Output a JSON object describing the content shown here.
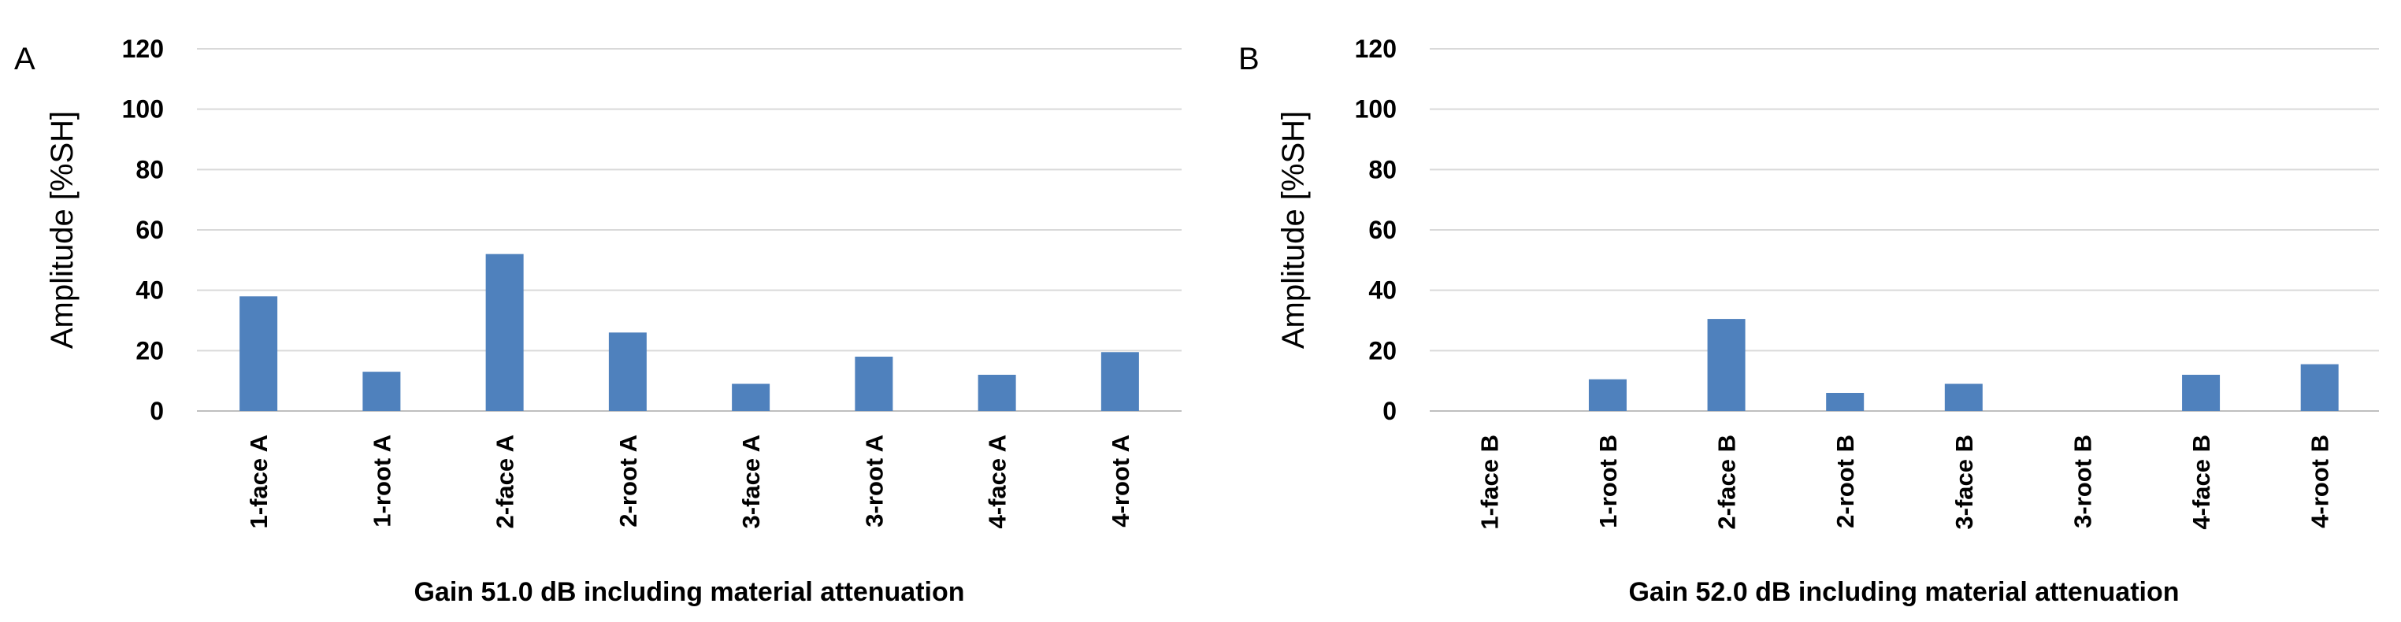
{
  "chart_data": [
    {
      "type": "bar",
      "panel": "A",
      "categories": [
        "1-face A",
        "1-root A",
        "2-face A",
        "2-root A",
        "3-face A",
        "3-root A",
        "4-face A",
        "4-root A"
      ],
      "values": [
        38,
        13,
        52,
        26,
        9,
        18,
        12,
        19.5
      ],
      "ylabel": "Amplitude [%SH]",
      "xlabel": "Gain 51.0 dB including material attenuation",
      "ylim": [
        0,
        120
      ],
      "yticks": [
        0,
        20,
        40,
        60,
        80,
        100,
        120
      ],
      "grid": true,
      "bar_color": "#4f81bd"
    },
    {
      "type": "bar",
      "panel": "B",
      "categories": [
        "1-face B",
        "1-root B",
        "2-face B",
        "2-root B",
        "3-face B",
        "3-root B",
        "4-face B",
        "4-root B"
      ],
      "values": [
        0,
        10.5,
        30.5,
        6,
        9,
        0,
        12,
        15.5
      ],
      "ylabel": "Amplitude [%SH]",
      "xlabel": "Gain 52.0 dB including material attenuation",
      "ylim": [
        0,
        120
      ],
      "yticks": [
        0,
        20,
        40,
        60,
        80,
        100,
        120
      ],
      "grid": true,
      "bar_color": "#4f81bd"
    }
  ]
}
